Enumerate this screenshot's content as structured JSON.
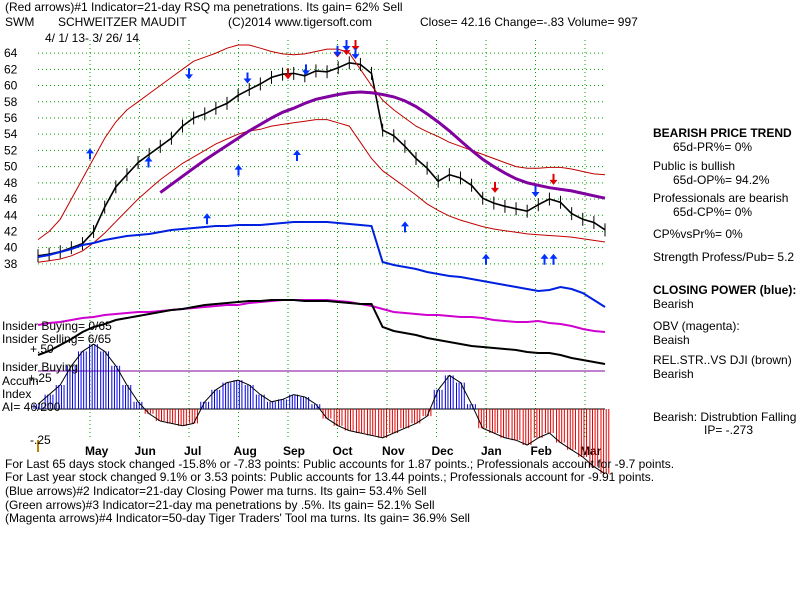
{
  "header": {
    "line1": "(Red arrows)#1 Indicator=21-day RSQ ma penetrations. Its gain= 62% Sell",
    "symbol": "SWM",
    "company": "SCHWEITZER MAUDIT",
    "credit": "(C)2014 www.tigersoft.com",
    "close": "Close=  42.16  Change=-.83 Volume= 997",
    "daterange": "4/ 1/ 13-  3/ 26/ 14"
  },
  "chart_data": {
    "type": "line",
    "y_ticks": [
      "64",
      "62",
      "60",
      "58",
      "56",
      "54",
      "52",
      "50",
      "48",
      "46",
      "44",
      "42",
      "40",
      "38"
    ],
    "ylim": [
      37,
      65
    ],
    "months": [
      "May",
      "Jun",
      "Jul",
      "Aug",
      "Sep",
      "Oct",
      "Nov",
      "Dec",
      "Jan",
      "Feb",
      "Mar"
    ],
    "price_series": [
      {
        "name": "price",
        "values": [
          39,
          39.2,
          39.5,
          40,
          40.5,
          42,
          45,
          47.5,
          49,
          50.5,
          51.5,
          52.5,
          53.5,
          55,
          56,
          56.5,
          57.2,
          57.8,
          58.8,
          59.5,
          60.2,
          61,
          61.4,
          61.5,
          61.2,
          61.8,
          61.7,
          62.2,
          62.8,
          62.6,
          61.5,
          54.5,
          53.8,
          52.5,
          51,
          49.8,
          48.2,
          49,
          48.6,
          47.7,
          46.1,
          45.5,
          45.1,
          44.8,
          44.5,
          45.3,
          46,
          45.6,
          44.2,
          43.5,
          43.1,
          42.2
        ]
      },
      {
        "name": "band-upper",
        "values": [
          41,
          42,
          43.5,
          46,
          48.5,
          51,
          53.5,
          55.5,
          57,
          58,
          59,
          60,
          61,
          62,
          63,
          63.5,
          64,
          64.6,
          65,
          65,
          64.6,
          64.2,
          63.9,
          63.8,
          63.9,
          64.2,
          64.5,
          64.5,
          64,
          62,
          60,
          58.2,
          57,
          56,
          55,
          54.3,
          53.7,
          53,
          52.5,
          52,
          51.5,
          51,
          50.5,
          50,
          49.8,
          49.8,
          49.9,
          49.9,
          49.7,
          49.4,
          49.1,
          49
        ]
      },
      {
        "name": "band-lower",
        "values": [
          38.2,
          38.4,
          38.6,
          39,
          39.6,
          40.6,
          41.8,
          43.2,
          44.6,
          46,
          47.2,
          48.4,
          49.4,
          50.4,
          51.2,
          52,
          52.8,
          53.4,
          54,
          54.4,
          54.6,
          55,
          55.2,
          55.4,
          55.6,
          55.8,
          55.8,
          55.4,
          55,
          53,
          51,
          49.5,
          48.5,
          47.5,
          46.5,
          45.4,
          44.6,
          43.9,
          43.4,
          43,
          42.6,
          42.3,
          42.1,
          41.9,
          41.7,
          41.6,
          41.5,
          41.4,
          41.3,
          41.1,
          40.9,
          40.7
        ]
      },
      {
        "name": "ma-50",
        "values": [
          null,
          null,
          null,
          null,
          null,
          null,
          null,
          null,
          null,
          null,
          null,
          46.8,
          47.8,
          48.8,
          49.8,
          50.8,
          51.7,
          52.6,
          53.5,
          54.4,
          55.2,
          56,
          56.7,
          57.2,
          57.8,
          58.3,
          58.6,
          58.9,
          59.1,
          59.2,
          59.1,
          58.9,
          58.6,
          58.1,
          57.4,
          56.5,
          55.5,
          54.4,
          53.2,
          52,
          50.9,
          50,
          49.2,
          48.5,
          48,
          47.7,
          47.4,
          47.2,
          47,
          46.7,
          46.4,
          46.1
        ]
      }
    ],
    "closing_power": [
      39.8,
      40,
      40.3,
      40.6,
      41,
      41.2,
      41.5,
      41.7,
      41.9,
      42,
      42.1,
      42.3,
      42.5,
      42.6,
      42.7,
      42.8,
      42.9,
      42.9,
      43,
      43,
      43,
      43.1,
      43.2,
      43.3,
      43.3,
      43.3,
      43.3,
      43.2,
      43.1,
      43,
      42.9,
      39.3,
      39,
      38.8,
      38.6,
      38.3,
      38.1,
      37.9,
      37.8,
      37.6,
      37.4,
      37.2,
      37,
      36.8,
      36.6,
      36.4,
      36.5,
      36.8,
      36.6,
      36.2,
      35.5,
      34.8
    ],
    "obv": [
      33,
      33.2,
      33.3,
      33.5,
      33.7,
      33.8,
      34,
      34.1,
      34.2,
      34.3,
      34.3,
      34.4,
      34.5,
      34.6,
      34.7,
      34.8,
      34.9,
      35,
      35,
      35.2,
      35.3,
      35.4,
      35.5,
      35.5,
      35.5,
      35.5,
      35.5,
      35.4,
      35.3,
      35.1,
      34.9,
      34.6,
      34.3,
      34.2,
      34.1,
      34,
      34,
      33.9,
      33.8,
      33.8,
      33.7,
      33.5,
      33.4,
      33.3,
      33.3,
      33.4,
      33.2,
      33.1,
      32.9,
      32.6,
      32.4,
      32.3
    ],
    "rel_strength": [
      30,
      30.4,
      31,
      31.6,
      32.3,
      32.8,
      33.1,
      33.5,
      33.7,
      33.9,
      34.1,
      34.3,
      34.5,
      34.6,
      34.8,
      35,
      35.1,
      35.2,
      35.3,
      35.4,
      35.4,
      35.5,
      35.5,
      35.5,
      35.4,
      35.4,
      35.4,
      35.3,
      35.2,
      35.1,
      35.1,
      32.8,
      32.4,
      32.2,
      32,
      31.7,
      31.5,
      31.3,
      31.1,
      30.9,
      30.8,
      30.7,
      30.6,
      30.5,
      30.3,
      30.2,
      30.2,
      30,
      29.7,
      29.5,
      29.3,
      29.1
    ],
    "accum_index": [
      0.02,
      0.06,
      0.1,
      0.18,
      0.24,
      0.27,
      0.24,
      0.18,
      0.1,
      0.03,
      -0.02,
      -0.05,
      -0.06,
      -0.07,
      -0.06,
      0.03,
      0.08,
      0.11,
      0.12,
      0.1,
      0.06,
      0.03,
      0.04,
      0.06,
      0.05,
      0.02,
      -0.04,
      -0.07,
      -0.09,
      -0.1,
      -0.11,
      -0.12,
      -0.1,
      -0.08,
      -0.06,
      -0.03,
      0.08,
      0.14,
      0.11,
      0.02,
      -0.08,
      -0.1,
      -0.12,
      -0.13,
      -0.15,
      -0.12,
      -0.1,
      -0.14,
      -0.17,
      -0.2,
      -0.24,
      -0.27
    ],
    "red_arrows_down": [
      [
        "Sep",
        61
      ],
      [
        "Oct",
        64
      ],
      [
        "Oct",
        64.5
      ],
      [
        "Oct",
        63.7
      ],
      [
        "Jan",
        47
      ],
      [
        "Feb",
        48
      ]
    ],
    "blue_arrows_down": [
      [
        "Jul",
        61
      ],
      [
        "Aug",
        60.5
      ],
      [
        "Sep",
        61.5
      ],
      [
        "Oct",
        63.8
      ],
      [
        "Oct",
        64.5
      ],
      [
        "Oct",
        63.5
      ],
      [
        "Feb",
        46.5
      ]
    ],
    "blue_arrows_up": [
      [
        "May",
        56
      ],
      [
        "Jun",
        55
      ],
      [
        "Jul",
        48
      ],
      [
        "Aug",
        54
      ],
      [
        "Sep",
        55.8
      ],
      [
        "Nov",
        47
      ],
      [
        "Jan",
        43
      ],
      [
        "Feb",
        43
      ],
      [
        "Feb",
        43
      ]
    ]
  },
  "labels": {
    "ind_buying": "Insider Buying= 0/65",
    "ind_selling": "Insider Selling= 6/65",
    "plus50": "+.50",
    "ins_buying": "Insider Buying",
    "accum": "Accum",
    "plus25": "+.25",
    "index": "Index",
    "ai": "AI= 46/200",
    "minus25": "-.25"
  },
  "side": {
    "trend_title": "BEARISH PRICE TREND",
    "pr": "65d-PR%= 0%",
    "public": "Public is bullish",
    "op": "65d-OP%= 94.2%",
    "prof": "Professionals are bearish",
    "cp": "65d-CP%= 0%",
    "cpvspr": "CP%vsPr%=  0%",
    "strength": "Strength Profess/Pub= 5.2",
    "cp_title": "CLOSING POWER (blue):",
    "cp_val": "Bearish",
    "obv_title": "OBV (magenta):",
    "obv_val": "Beaish",
    "rel_title": "REL.STR..VS DJI (brown)",
    "rel_val": "Bearish",
    "bear_dist": "Bearish: Distrubtion Falling",
    "ip": "IP= -.273"
  },
  "footer": {
    "l1": "For Last 65 days stock changed -15.8% or -7.83 points:  Public accounts for  1.87 points.;  Professionals account for -9.7 points.",
    "l2": "For Last year stock changed  9.1% or  3.53 points:  Public accounts for  13.44 points.;  Professionals account for -9.91 points.",
    "l3": "(Blue arrows)#2 Indicator=21-day Closing Power ma turns. Its gain= 53.4% Sell",
    "l4": "(Green arrows)#3 Indicator=21-day ma penetrations by .5%. Its gain= 52.1% Sell",
    "l5": "(Magenta arrows)#4 Indicator=50-day Tiger Traders' Tool ma turns. Its gain= 36.9% Sell"
  }
}
